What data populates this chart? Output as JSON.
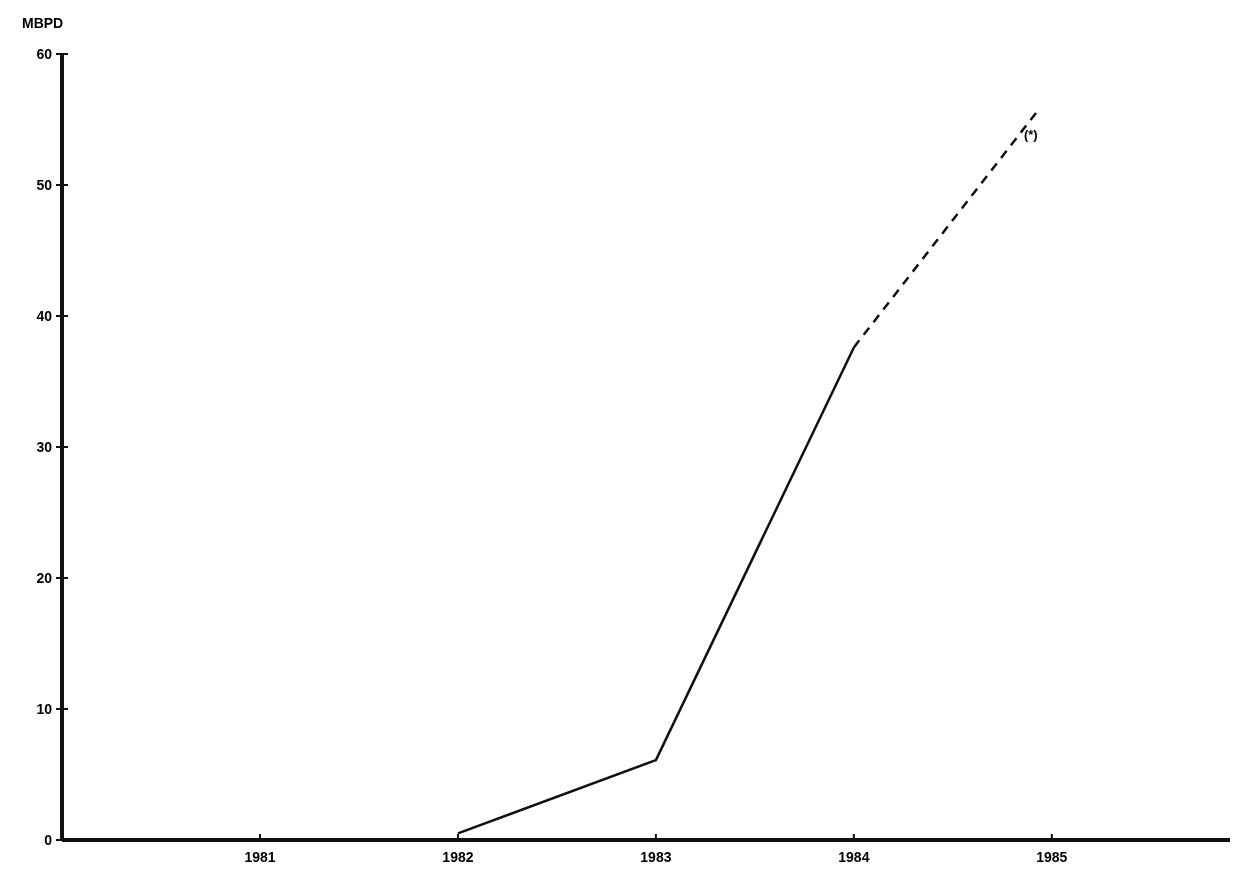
{
  "chart_data": {
    "type": "line",
    "ylabel": "MBPD",
    "xlim": [
      1980,
      1985.9
    ],
    "ylim": [
      0,
      60
    ],
    "xticks": [
      1981,
      1982,
      1983,
      1984,
      1985
    ],
    "yticks": [
      0,
      10,
      20,
      30,
      40,
      50,
      60
    ],
    "series": [
      {
        "color": "#111111",
        "x": [
          1982,
          1983,
          1984
        ],
        "values": [
          0.5,
          6.1,
          37.6
        ],
        "line_style": "solid"
      },
      {
        "color": "#111111",
        "x": [
          1984,
          1984.92
        ],
        "values": [
          37.6,
          55.5
        ],
        "line_style": "dashed"
      }
    ],
    "annotations": [
      {
        "text": "(*)",
        "x": 1984.92,
        "y": 55.5
      }
    ],
    "marker": "none",
    "grid": false
  }
}
